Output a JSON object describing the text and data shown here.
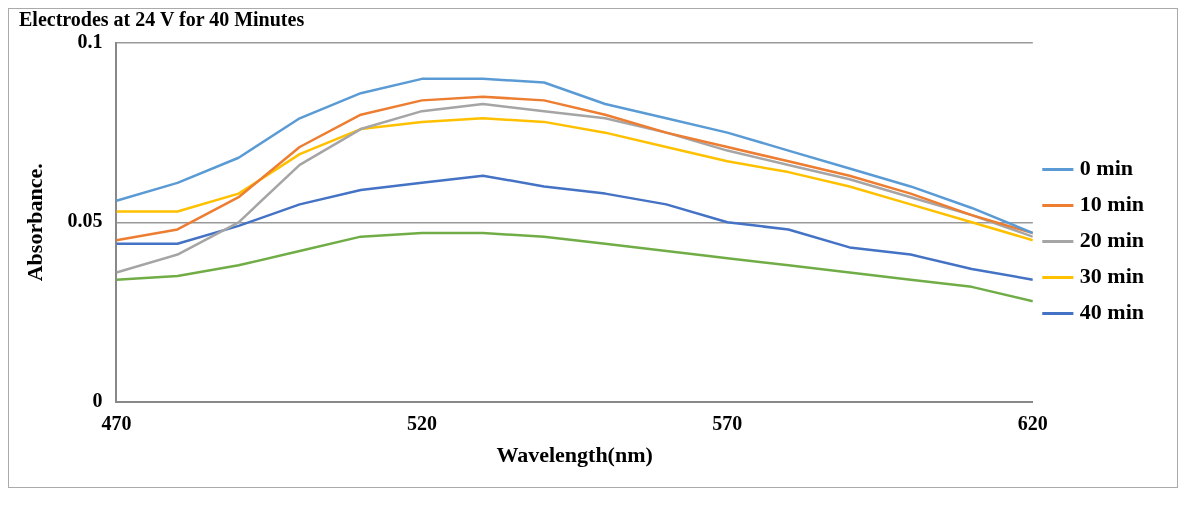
{
  "chart_data": {
    "type": "line",
    "title": "Electrodes at 24 V for 40 Minutes",
    "xlabel": "Wavelength(nm)",
    "ylabel": "Absorbance.",
    "x": [
      470,
      480,
      490,
      500,
      510,
      520,
      530,
      540,
      550,
      560,
      570,
      580,
      590,
      600,
      610,
      620
    ],
    "xlim": [
      470,
      620
    ],
    "xticks": [
      470,
      520,
      570,
      620
    ],
    "ylim": [
      0,
      0.1
    ],
    "yticks": [
      0,
      0.05,
      0.1
    ],
    "grid": "y",
    "legend": "right",
    "marker": "none",
    "line_style": "solid",
    "series": [
      {
        "name": "0 min",
        "color": "#5b9bd5",
        "values": [
          0.056,
          0.061,
          0.068,
          0.079,
          0.086,
          0.09,
          0.09,
          0.089,
          0.083,
          0.079,
          0.075,
          0.07,
          0.065,
          0.06,
          0.054,
          0.047
        ]
      },
      {
        "name": "10 min",
        "color": "#ed7d31",
        "values": [
          0.045,
          0.048,
          0.057,
          0.071,
          0.08,
          0.084,
          0.085,
          0.084,
          0.08,
          0.075,
          0.071,
          0.067,
          0.063,
          0.058,
          0.052,
          0.047
        ]
      },
      {
        "name": "20 min",
        "color": "#a5a5a5",
        "values": [
          0.036,
          0.041,
          0.05,
          0.066,
          0.076,
          0.081,
          0.083,
          0.081,
          0.079,
          0.075,
          0.07,
          0.066,
          0.062,
          0.057,
          0.052,
          0.046
        ]
      },
      {
        "name": "30 min",
        "color": "#ffc000",
        "values": [
          0.053,
          0.053,
          0.058,
          0.069,
          0.076,
          0.078,
          0.079,
          0.078,
          0.075,
          0.071,
          0.067,
          0.064,
          0.06,
          0.055,
          0.05,
          0.045
        ]
      },
      {
        "name": "40 min",
        "color": "#4472c4",
        "values": [
          0.044,
          0.044,
          0.049,
          0.055,
          0.059,
          0.061,
          0.063,
          0.06,
          0.058,
          0.055,
          0.05,
          0.048,
          0.043,
          0.041,
          0.037,
          0.034
        ]
      },
      {
        "color": "#70ad47",
        "values": [
          0.034,
          0.035,
          0.038,
          0.042,
          0.046,
          0.047,
          0.047,
          0.046,
          0.044,
          0.042,
          0.04,
          0.038,
          0.036,
          0.034,
          0.032,
          0.028
        ]
      }
    ]
  }
}
